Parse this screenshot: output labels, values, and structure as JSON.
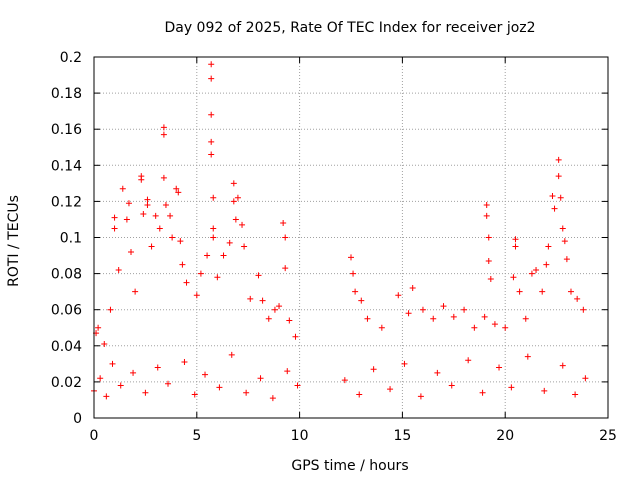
{
  "chart_data": {
    "type": "scatter",
    "title": "Day 092 of 2025, Rate Of TEC Index for receiver joz2",
    "xlabel": "GPS time / hours",
    "ylabel": "ROTI / TECUs",
    "xlim": [
      0,
      25
    ],
    "ylim": [
      0,
      0.2
    ],
    "x_ticks": [
      "0",
      "5",
      "10",
      "15",
      "20",
      "25"
    ],
    "y_ticks": [
      "0",
      "0.02",
      "0.04",
      "0.06",
      "0.08",
      "0.1",
      "0.12",
      "0.14",
      "0.16",
      "0.18",
      "0.2"
    ],
    "grid": true,
    "marker": "+",
    "series_color": "#ff0000",
    "gap_hours": [
      9.9,
      12.2
    ],
    "points": [
      [
        0.1,
        0.047
      ],
      [
        0.2,
        0.05
      ],
      [
        0.5,
        0.041
      ],
      [
        0.8,
        0.06
      ],
      [
        1.0,
        0.105
      ],
      [
        1.0,
        0.111
      ],
      [
        1.2,
        0.082
      ],
      [
        1.4,
        0.127
      ],
      [
        1.6,
        0.11
      ],
      [
        1.7,
        0.119
      ],
      [
        1.8,
        0.092
      ],
      [
        2.0,
        0.07
      ],
      [
        2.3,
        0.134
      ],
      [
        2.3,
        0.132
      ],
      [
        2.4,
        0.113
      ],
      [
        2.6,
        0.121
      ],
      [
        2.6,
        0.118
      ],
      [
        2.8,
        0.095
      ],
      [
        3.0,
        0.112
      ],
      [
        3.2,
        0.105
      ],
      [
        3.4,
        0.161
      ],
      [
        3.4,
        0.157
      ],
      [
        3.4,
        0.133
      ],
      [
        3.5,
        0.118
      ],
      [
        3.7,
        0.112
      ],
      [
        3.8,
        0.1
      ],
      [
        4.0,
        0.127
      ],
      [
        4.1,
        0.125
      ],
      [
        4.2,
        0.098
      ],
      [
        4.3,
        0.085
      ],
      [
        4.5,
        0.075
      ],
      [
        5.0,
        0.068
      ],
      [
        5.2,
        0.08
      ],
      [
        5.5,
        0.09
      ],
      [
        5.7,
        0.196
      ],
      [
        5.7,
        0.188
      ],
      [
        5.7,
        0.168
      ],
      [
        5.7,
        0.153
      ],
      [
        5.7,
        0.146
      ],
      [
        5.8,
        0.122
      ],
      [
        5.8,
        0.105
      ],
      [
        5.8,
        0.1
      ],
      [
        6.0,
        0.078
      ],
      [
        6.3,
        0.09
      ],
      [
        6.6,
        0.097
      ],
      [
        6.8,
        0.13
      ],
      [
        6.8,
        0.12
      ],
      [
        6.9,
        0.11
      ],
      [
        7.0,
        0.122
      ],
      [
        7.2,
        0.107
      ],
      [
        7.3,
        0.095
      ],
      [
        7.6,
        0.066
      ],
      [
        8.0,
        0.079
      ],
      [
        8.2,
        0.065
      ],
      [
        8.5,
        0.055
      ],
      [
        8.8,
        0.06
      ],
      [
        9.0,
        0.062
      ],
      [
        9.2,
        0.108
      ],
      [
        9.3,
        0.1
      ],
      [
        9.3,
        0.083
      ],
      [
        9.5,
        0.054
      ],
      [
        9.8,
        0.045
      ],
      [
        12.5,
        0.089
      ],
      [
        12.6,
        0.08
      ],
      [
        12.7,
        0.07
      ],
      [
        13.0,
        0.065
      ],
      [
        13.3,
        0.055
      ],
      [
        14.0,
        0.05
      ],
      [
        14.8,
        0.068
      ],
      [
        15.3,
        0.058
      ],
      [
        15.5,
        0.072
      ],
      [
        16.0,
        0.06
      ],
      [
        16.5,
        0.055
      ],
      [
        17.0,
        0.062
      ],
      [
        17.5,
        0.056
      ],
      [
        18.0,
        0.06
      ],
      [
        18.5,
        0.05
      ],
      [
        19.0,
        0.056
      ],
      [
        19.1,
        0.118
      ],
      [
        19.1,
        0.112
      ],
      [
        19.2,
        0.1
      ],
      [
        19.2,
        0.087
      ],
      [
        19.3,
        0.077
      ],
      [
        19.5,
        0.052
      ],
      [
        20.0,
        0.05
      ],
      [
        20.4,
        0.078
      ],
      [
        20.5,
        0.099
      ],
      [
        20.5,
        0.095
      ],
      [
        20.7,
        0.07
      ],
      [
        21.0,
        0.055
      ],
      [
        21.3,
        0.08
      ],
      [
        21.5,
        0.082
      ],
      [
        21.8,
        0.07
      ],
      [
        22.0,
        0.085
      ],
      [
        22.1,
        0.095
      ],
      [
        22.3,
        0.123
      ],
      [
        22.4,
        0.116
      ],
      [
        22.6,
        0.143
      ],
      [
        22.6,
        0.134
      ],
      [
        22.7,
        0.122
      ],
      [
        22.8,
        0.105
      ],
      [
        22.9,
        0.098
      ],
      [
        23.0,
        0.088
      ],
      [
        23.2,
        0.07
      ],
      [
        23.5,
        0.066
      ],
      [
        23.8,
        0.06
      ],
      [
        0.0,
        0.015
      ],
      [
        0.3,
        0.022
      ],
      [
        0.6,
        0.012
      ],
      [
        0.9,
        0.03
      ],
      [
        1.3,
        0.018
      ],
      [
        1.9,
        0.025
      ],
      [
        2.5,
        0.014
      ],
      [
        3.1,
        0.028
      ],
      [
        3.6,
        0.019
      ],
      [
        4.4,
        0.031
      ],
      [
        4.9,
        0.013
      ],
      [
        5.4,
        0.024
      ],
      [
        6.1,
        0.017
      ],
      [
        6.7,
        0.035
      ],
      [
        7.4,
        0.014
      ],
      [
        8.1,
        0.022
      ],
      [
        8.7,
        0.011
      ],
      [
        9.4,
        0.026
      ],
      [
        9.9,
        0.018
      ],
      [
        12.2,
        0.021
      ],
      [
        12.9,
        0.013
      ],
      [
        13.6,
        0.027
      ],
      [
        14.4,
        0.016
      ],
      [
        15.1,
        0.03
      ],
      [
        15.9,
        0.012
      ],
      [
        16.7,
        0.025
      ],
      [
        17.4,
        0.018
      ],
      [
        18.2,
        0.032
      ],
      [
        18.9,
        0.014
      ],
      [
        19.7,
        0.028
      ],
      [
        20.3,
        0.017
      ],
      [
        21.1,
        0.034
      ],
      [
        21.9,
        0.015
      ],
      [
        22.8,
        0.029
      ],
      [
        23.4,
        0.013
      ],
      [
        23.9,
        0.022
      ]
    ]
  }
}
